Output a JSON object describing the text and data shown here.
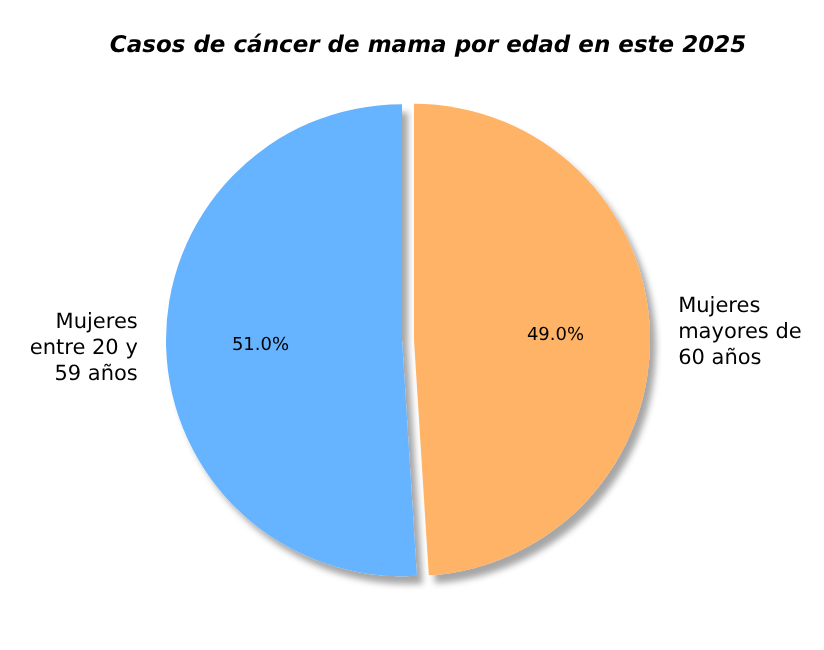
{
  "chart_data": {
    "type": "pie",
    "title": "Casos de cáncer de mama por edad en este 2025",
    "categories": [
      "Mujeres entre 20 y 59 años",
      "Mujeres mayores de 60 años"
    ],
    "values": [
      51,
      49
    ],
    "colors": [
      "#66b3ff",
      "#ffb366"
    ],
    "value_labels": [
      "51.0%",
      "49.0%"
    ]
  }
}
